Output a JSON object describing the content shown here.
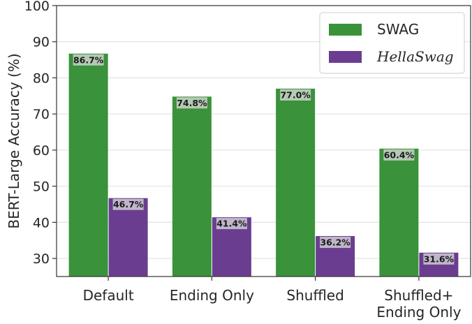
{
  "chart_data": {
    "type": "bar",
    "categories": [
      [
        "Default"
      ],
      [
        "Ending Only"
      ],
      [
        "Shuffled"
      ],
      [
        "Shuffled+",
        "Ending Only"
      ]
    ],
    "series": [
      {
        "name": "SWAG",
        "values": [
          86.7,
          74.8,
          77.0,
          60.4
        ],
        "labels": [
          "86.7%",
          "74.8%",
          "77.0%",
          "60.4%"
        ],
        "color": "#3a923a"
      },
      {
        "name": "HellaSwag",
        "values": [
          46.7,
          41.4,
          36.2,
          31.6
        ],
        "labels": [
          "46.7%",
          "41.4%",
          "36.2%",
          "31.6%"
        ],
        "color": "#6b3d91"
      }
    ],
    "ylabel": "BERT-Large Accuracy (%)",
    "xlabel": "",
    "ylim": [
      25,
      100
    ],
    "yticks": [
      30,
      40,
      50,
      60,
      70,
      80,
      90,
      100
    ],
    "grid": "horizontal",
    "legend_position": "top-right"
  }
}
